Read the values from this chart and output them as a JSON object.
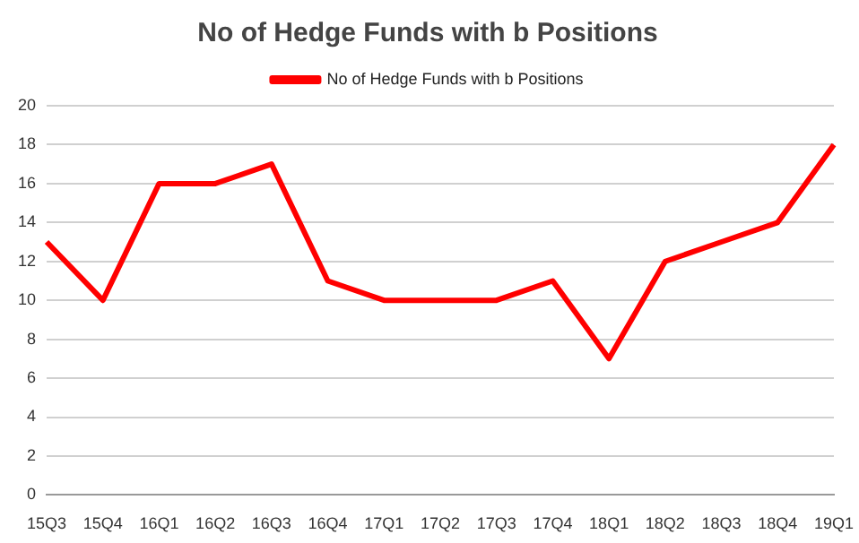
{
  "chart_data": {
    "type": "line",
    "title": "No of Hedge Funds with b Positions",
    "categories": [
      "15Q3",
      "15Q4",
      "16Q1",
      "16Q2",
      "16Q3",
      "16Q4",
      "17Q1",
      "17Q2",
      "17Q3",
      "17Q4",
      "18Q1",
      "18Q2",
      "18Q3",
      "18Q4",
      "19Q1"
    ],
    "series": [
      {
        "name": "No of Hedge Funds with b Positions",
        "color": "#ff0000",
        "values": [
          13,
          10,
          16,
          16,
          17,
          11,
          10,
          10,
          10,
          11,
          7,
          12,
          13,
          14,
          18
        ]
      }
    ],
    "ylim": [
      0,
      20
    ],
    "yticks": [
      0,
      2,
      4,
      6,
      8,
      10,
      12,
      14,
      16,
      18,
      20
    ],
    "grid": "y",
    "legend": "top",
    "marker": "none",
    "line_style": "solid"
  }
}
